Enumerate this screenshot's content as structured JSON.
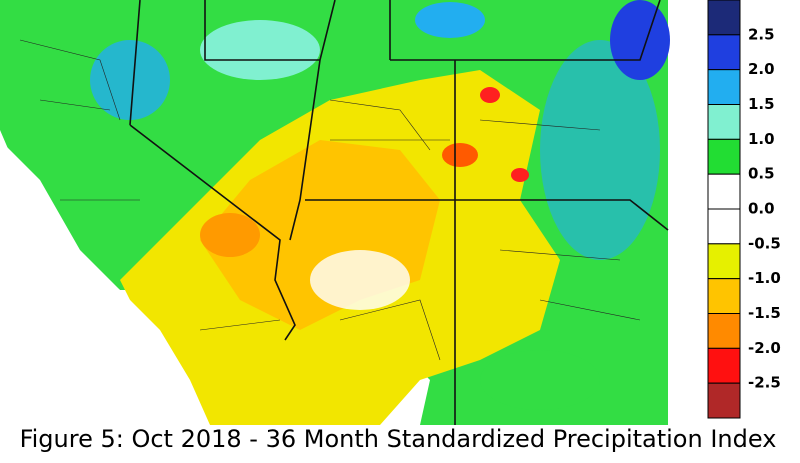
{
  "caption": "Figure 5: Oct 2018 - 36 Month Standardized Precipitation Index",
  "legend": {
    "colors": [
      "#1c2a78",
      "#1f3fe0",
      "#22aef0",
      "#80f0d0",
      "#22dd33",
      "#ffffff",
      "#ffffff",
      "#e6f000",
      "#ffc400",
      "#ff8a00",
      "#ff1010",
      "#b02828"
    ],
    "labels": [
      "2.5",
      "2.0",
      "1.5",
      "1.0",
      "0.5",
      "0.0",
      "-0.5",
      "-1.0",
      "-1.5",
      "-2.0",
      "-2.5"
    ]
  }
}
